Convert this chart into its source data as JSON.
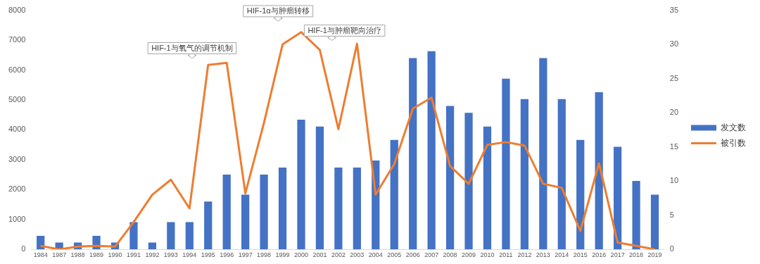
{
  "chart_data": {
    "type": "bar",
    "categories": [
      "1984",
      "1987",
      "1988",
      "1989",
      "1990",
      "1991",
      "1992",
      "1993",
      "1994",
      "1995",
      "1996",
      "1997",
      "1998",
      "1999",
      "2000",
      "2001",
      "2002",
      "2003",
      "2004",
      "2005",
      "2006",
      "2007",
      "2008",
      "2009",
      "2010",
      "2011",
      "2012",
      "2013",
      "2014",
      "2015",
      "2016",
      "2017",
      "2018",
      "2019"
    ],
    "series": [
      {
        "name": "发文数",
        "type": "bar",
        "color": "#4472c4",
        "values": [
          450,
          230,
          230,
          450,
          230,
          910,
          230,
          910,
          910,
          1600,
          2500,
          1830,
          2500,
          2740,
          4340,
          4110,
          2740,
          2740,
          2970,
          3660,
          6400,
          6630,
          4800,
          4570,
          4110,
          5710,
          5030,
          6400,
          5030,
          3660,
          5260,
          3430,
          2290,
          1830
        ]
      },
      {
        "name": "被引数",
        "type": "line",
        "axis": "y2",
        "color": "#ed7d31",
        "values": [
          0.5,
          0,
          0.4,
          0.5,
          0.4,
          4,
          8,
          10.2,
          6,
          27,
          27.3,
          8.2,
          18.5,
          30,
          31.8,
          29.2,
          17.6,
          30.1,
          8,
          12.5,
          20.6,
          22.2,
          12.2,
          9.6,
          15.3,
          15.7,
          15.2,
          9.6,
          9,
          2.7,
          12.6,
          1,
          0.5,
          0
        ]
      }
    ],
    "ylim": [
      0,
      8000
    ],
    "yticks": [
      0,
      1000,
      2000,
      3000,
      4000,
      5000,
      6000,
      7000,
      8000
    ],
    "y2lim": [
      0,
      35
    ],
    "y2ticks": [
      0,
      5,
      10,
      15,
      20,
      25,
      30,
      35
    ],
    "annotations": [
      "HIF-1与氧气的调节机制",
      "HIF-1α与肿瘤转移",
      "HIF-1与肿瘤靶向治疗"
    ],
    "grid": false,
    "legend": "right",
    "marker": "none",
    "line_style": "solid"
  }
}
